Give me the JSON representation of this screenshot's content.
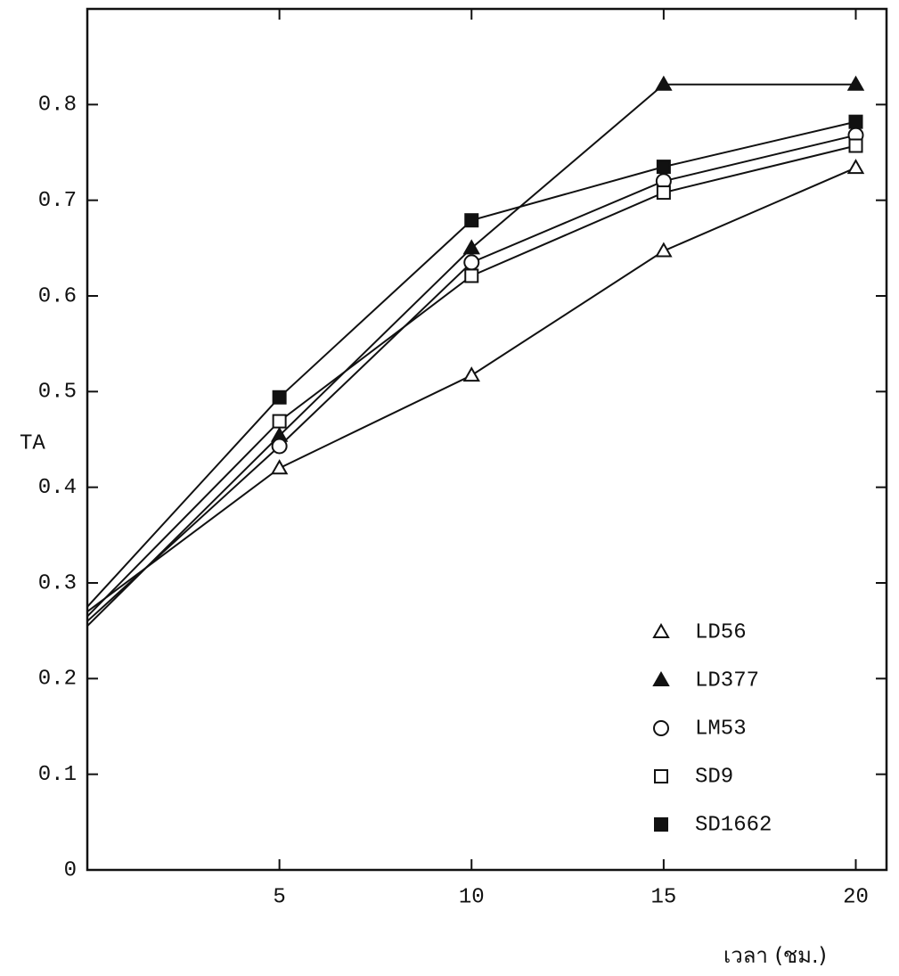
{
  "chart_data": {
    "type": "line",
    "x_label": "เวลา (ชม.)",
    "y_label": "TA",
    "x": [
      0,
      5,
      10,
      15,
      20
    ],
    "xlim": [
      0,
      20.8
    ],
    "xticks": [
      5,
      10,
      15,
      20
    ],
    "ylim": [
      0,
      0.9
    ],
    "yticks": [
      0,
      0.1,
      0.2,
      0.3,
      0.4,
      0.5,
      0.6,
      0.7,
      0.8
    ],
    "legend": "lower right",
    "series": [
      {
        "name": "LD56",
        "color": "#111111",
        "marker": "triangle-open",
        "values": [
          0.27,
          0.42,
          0.517,
          0.647,
          0.734
        ]
      },
      {
        "name": "LD377",
        "color": "#111111",
        "marker": "triangle",
        "values": [
          0.255,
          0.454,
          0.65,
          0.821,
          0.821
        ]
      },
      {
        "name": "LM53",
        "color": "#111111",
        "marker": "circle-open",
        "values": [
          0.26,
          0.443,
          0.635,
          0.72,
          0.768
        ]
      },
      {
        "name": "SD9",
        "color": "#111111",
        "marker": "square-open",
        "values": [
          0.265,
          0.469,
          0.621,
          0.708,
          0.757
        ]
      },
      {
        "name": "SD1662",
        "color": "#111111",
        "marker": "square",
        "values": [
          0.275,
          0.494,
          0.679,
          0.735,
          0.782
        ]
      }
    ]
  }
}
